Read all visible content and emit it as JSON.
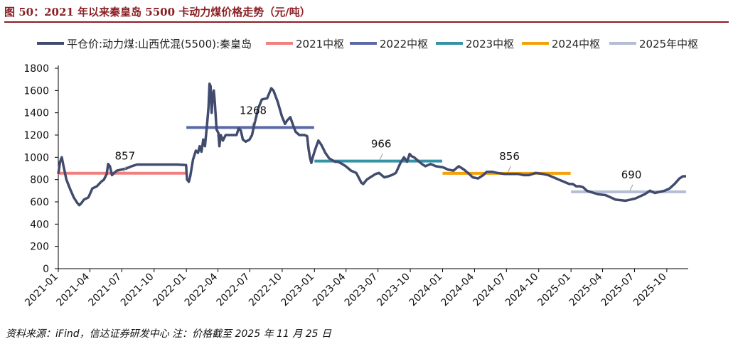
{
  "title": "图 50：2021 年以来秦皇岛 5500 卡动力煤价格走势（元/吨）",
  "source": "资料来源：iFind，信达证券研发中心  注：价格截至 2025 年 11 月 25 日",
  "chart_data": {
    "type": "line",
    "title": "",
    "xlabel": "",
    "ylabel": "",
    "ylim": [
      0,
      1800
    ],
    "yticks": [
      0,
      200,
      400,
      600,
      800,
      1000,
      1200,
      1400,
      1600,
      1800
    ],
    "xlim": [
      "2021-01",
      "2025-12"
    ],
    "xticks": [
      "2021-01",
      "2021-04",
      "2021-07",
      "2021-10",
      "2022-01",
      "2022-04",
      "2022-07",
      "2022-10",
      "2023-01",
      "2023-04",
      "2023-07",
      "2023-10",
      "2024-01",
      "2024-04",
      "2024-07",
      "2024-10",
      "2025-01",
      "2025-04",
      "2025-07",
      "2025-10"
    ],
    "legend_position": "top",
    "series": [
      {
        "name": "平仓价:动力煤:山西优混(5500):秦皇岛",
        "color": "#414b6e",
        "points": [
          [
            "2021-01-01",
            850
          ],
          [
            "2021-01-06",
            960
          ],
          [
            "2021-01-11",
            1000
          ],
          [
            "2021-01-16",
            920
          ],
          [
            "2021-01-24",
            800
          ],
          [
            "2021-02-03",
            720
          ],
          [
            "2021-02-14",
            640
          ],
          [
            "2021-02-24",
            590
          ],
          [
            "2021-03-02",
            570
          ],
          [
            "2021-03-08",
            590
          ],
          [
            "2021-03-15",
            620
          ],
          [
            "2021-03-28",
            640
          ],
          [
            "2021-04-08",
            720
          ],
          [
            "2021-04-21",
            740
          ],
          [
            "2021-05-03",
            780
          ],
          [
            "2021-05-11",
            800
          ],
          [
            "2021-05-19",
            850
          ],
          [
            "2021-05-23",
            940
          ],
          [
            "2021-05-28",
            920
          ],
          [
            "2021-06-03",
            840
          ],
          [
            "2021-06-09",
            860
          ],
          [
            "2021-06-17",
            880
          ],
          [
            "2021-06-30",
            890
          ],
          [
            "2021-07-14",
            900
          ],
          [
            "2021-07-29",
            920
          ],
          [
            "2021-08-13",
            935
          ],
          [
            "2021-09-08",
            935
          ],
          [
            "2021-10-08",
            935
          ],
          [
            "2021-11-07",
            935
          ],
          [
            "2021-12-07",
            935
          ],
          [
            "2021-12-31",
            930
          ],
          [
            "2022-01-03",
            800
          ],
          [
            "2022-01-08",
            780
          ],
          [
            "2022-01-12",
            830
          ],
          [
            "2022-01-20",
            980
          ],
          [
            "2022-01-28",
            1060
          ],
          [
            "2022-02-03",
            1040
          ],
          [
            "2022-02-08",
            1100
          ],
          [
            "2022-02-13",
            1050
          ],
          [
            "2022-02-18",
            1160
          ],
          [
            "2022-02-23",
            1100
          ],
          [
            "2022-03-01",
            1300
          ],
          [
            "2022-03-05",
            1450
          ],
          [
            "2022-03-08",
            1660
          ],
          [
            "2022-03-11",
            1640
          ],
          [
            "2022-03-14",
            1400
          ],
          [
            "2022-03-17",
            1550
          ],
          [
            "2022-03-20",
            1600
          ],
          [
            "2022-03-23",
            1500
          ],
          [
            "2022-03-28",
            1250
          ],
          [
            "2022-04-02",
            1220
          ],
          [
            "2022-04-05",
            1100
          ],
          [
            "2022-04-09",
            1200
          ],
          [
            "2022-04-15",
            1150
          ],
          [
            "2022-04-23",
            1200
          ],
          [
            "2022-05-09",
            1200
          ],
          [
            "2022-05-24",
            1200
          ],
          [
            "2022-05-30",
            1260
          ],
          [
            "2022-06-05",
            1240
          ],
          [
            "2022-06-11",
            1160
          ],
          [
            "2022-06-19",
            1140
          ],
          [
            "2022-06-30",
            1160
          ],
          [
            "2022-07-07",
            1200
          ],
          [
            "2022-07-14",
            1300
          ],
          [
            "2022-07-25",
            1440
          ],
          [
            "2022-08-04",
            1520
          ],
          [
            "2022-08-19",
            1530
          ],
          [
            "2022-08-31",
            1620
          ],
          [
            "2022-09-06",
            1600
          ],
          [
            "2022-09-18",
            1500
          ],
          [
            "2022-09-30",
            1370
          ],
          [
            "2022-10-09",
            1300
          ],
          [
            "2022-10-15",
            1330
          ],
          [
            "2022-10-24",
            1360
          ],
          [
            "2022-11-01",
            1290
          ],
          [
            "2022-11-08",
            1230
          ],
          [
            "2022-11-19",
            1200
          ],
          [
            "2022-12-04",
            1200
          ],
          [
            "2022-12-11",
            1190
          ],
          [
            "2022-12-15",
            1080
          ],
          [
            "2022-12-19",
            1000
          ],
          [
            "2022-12-23",
            950
          ],
          [
            "2022-12-27",
            1000
          ],
          [
            "2023-01-03",
            1070
          ],
          [
            "2023-01-12",
            1150
          ],
          [
            "2023-01-21",
            1110
          ],
          [
            "2023-02-01",
            1040
          ],
          [
            "2023-02-12",
            990
          ],
          [
            "2023-03-01",
            960
          ],
          [
            "2023-03-09",
            960
          ],
          [
            "2023-03-21",
            940
          ],
          [
            "2023-03-31",
            920
          ],
          [
            "2023-04-15",
            880
          ],
          [
            "2023-04-30",
            860
          ],
          [
            "2023-05-10",
            800
          ],
          [
            "2023-05-15",
            770
          ],
          [
            "2023-05-20",
            760
          ],
          [
            "2023-05-25",
            780
          ],
          [
            "2023-05-30",
            800
          ],
          [
            "2023-06-09",
            820
          ],
          [
            "2023-06-24",
            850
          ],
          [
            "2023-07-04",
            860
          ],
          [
            "2023-07-19",
            820
          ],
          [
            "2023-07-31",
            830
          ],
          [
            "2023-08-09",
            840
          ],
          [
            "2023-08-21",
            860
          ],
          [
            "2023-09-03",
            950
          ],
          [
            "2023-09-13",
            1000
          ],
          [
            "2023-09-22",
            960
          ],
          [
            "2023-09-29",
            1030
          ],
          [
            "2023-10-05",
            1010
          ],
          [
            "2023-10-12",
            1000
          ],
          [
            "2023-10-19",
            980
          ],
          [
            "2023-11-03",
            940
          ],
          [
            "2023-11-13",
            920
          ],
          [
            "2023-11-28",
            940
          ],
          [
            "2023-12-13",
            920
          ],
          [
            "2024-01-02",
            910
          ],
          [
            "2024-01-17",
            890
          ],
          [
            "2024-02-01",
            880
          ],
          [
            "2024-02-16",
            920
          ],
          [
            "2024-03-02",
            890
          ],
          [
            "2024-03-17",
            850
          ],
          [
            "2024-03-27",
            820
          ],
          [
            "2024-04-11",
            810
          ],
          [
            "2024-04-26",
            840
          ],
          [
            "2024-05-06",
            870
          ],
          [
            "2024-05-21",
            870
          ],
          [
            "2024-06-05",
            860
          ],
          [
            "2024-06-25",
            850
          ],
          [
            "2024-07-15",
            850
          ],
          [
            "2024-08-04",
            850
          ],
          [
            "2024-08-19",
            840
          ],
          [
            "2024-09-03",
            840
          ],
          [
            "2024-09-23",
            860
          ],
          [
            "2024-10-13",
            850
          ],
          [
            "2024-10-28",
            840
          ],
          [
            "2024-11-12",
            820
          ],
          [
            "2024-11-27",
            800
          ],
          [
            "2024-12-12",
            780
          ],
          [
            "2024-12-27",
            760
          ],
          [
            "2025-01-06",
            760
          ],
          [
            "2025-01-16",
            740
          ],
          [
            "2025-01-26",
            740
          ],
          [
            "2025-02-05",
            730
          ],
          [
            "2025-02-15",
            700
          ],
          [
            "2025-02-25",
            690
          ],
          [
            "2025-03-07",
            680
          ],
          [
            "2025-03-17",
            670
          ],
          [
            "2025-03-27",
            665
          ],
          [
            "2025-04-10",
            660
          ],
          [
            "2025-04-24",
            640
          ],
          [
            "2025-05-08",
            620
          ],
          [
            "2025-05-22",
            615
          ],
          [
            "2025-06-05",
            610
          ],
          [
            "2025-06-19",
            620
          ],
          [
            "2025-07-03",
            630
          ],
          [
            "2025-07-17",
            650
          ],
          [
            "2025-07-31",
            670
          ],
          [
            "2025-08-14",
            700
          ],
          [
            "2025-08-28",
            680
          ],
          [
            "2025-09-11",
            690
          ],
          [
            "2025-09-25",
            700
          ],
          [
            "2025-10-09",
            720
          ],
          [
            "2025-10-23",
            760
          ],
          [
            "2025-11-06",
            810
          ],
          [
            "2025-11-16",
            830
          ],
          [
            "2025-11-25",
            830
          ]
        ]
      }
    ],
    "center_lines": [
      {
        "name": "2021中枢",
        "color": "#f08080",
        "value": 857,
        "label": "857",
        "from": "2021-01-01",
        "to": "2021-12-31"
      },
      {
        "name": "2022中枢",
        "color": "#5b6aa6",
        "value": 1268,
        "label": "1268",
        "from": "2022-01-01",
        "to": "2022-12-31"
      },
      {
        "name": "2023中枢",
        "color": "#3593a6",
        "value": 966,
        "label": "966",
        "from": "2023-01-01",
        "to": "2023-12-31"
      },
      {
        "name": "2024中枢",
        "color": "#f5a10a",
        "value": 856,
        "label": "856",
        "from": "2024-01-01",
        "to": "2024-12-31"
      },
      {
        "name": "2025年中枢",
        "color": "#b4bdd3",
        "value": 690,
        "label": "690",
        "from": "2025-01-01",
        "to": "2025-11-25"
      }
    ]
  }
}
